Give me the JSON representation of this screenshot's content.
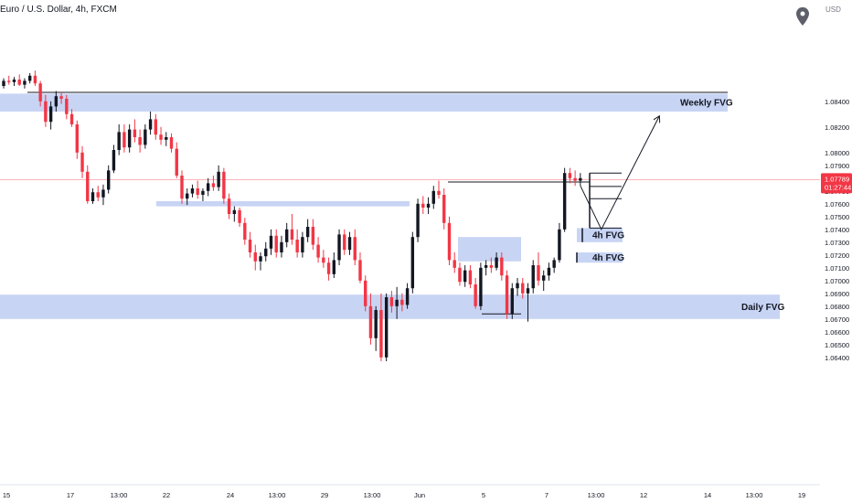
{
  "header": {
    "title": "Euro / U.S. Dollar, 4h, FXCM",
    "currency": "USD"
  },
  "chart_data": {
    "type": "candlestick",
    "price_axis": {
      "ticks": [
        1.084,
        1.082,
        1.08,
        1.079,
        1.077,
        1.076,
        1.075,
        1.074,
        1.073,
        1.072,
        1.071,
        1.07,
        1.069,
        1.068,
        1.067,
        1.066,
        1.065,
        1.064
      ],
      "labels": [
        "1.08400",
        "1.08200",
        "1.08000",
        "1.07900",
        "1.07700",
        "1.07600",
        "1.07500",
        "1.07400",
        "1.07300",
        "1.07200",
        "1.07100",
        "1.07000",
        "1.06900",
        "1.06800",
        "1.06700",
        "1.06600",
        "1.06500",
        "1.06400"
      ]
    },
    "time_axis": {
      "labels": [
        "15",
        "17",
        "13:00",
        "22",
        "24",
        "13:00",
        "29",
        "13:00",
        "Jun",
        "5",
        "7",
        "13:00",
        "12",
        "14",
        "13:00",
        "19"
      ]
    },
    "current_price": {
      "value": "1.07789",
      "countdown": "01:27:44",
      "color": "#f23645"
    },
    "zones": [
      {
        "label": "Weekly FVG",
        "from": 1.0832,
        "to": 1.0846
      },
      {
        "label": "",
        "from": 1.0758,
        "to": 1.0762
      },
      {
        "label": "",
        "from": 1.0715,
        "to": 1.0734
      },
      {
        "label": "4h FVG",
        "from": 1.073,
        "to": 1.0741
      },
      {
        "label": "4h FVG",
        "from": 1.0714,
        "to": 1.0722
      },
      {
        "label": "Daily FVG",
        "from": 1.067,
        "to": 1.0689
      }
    ],
    "levels": [
      1.0847,
      1.0777,
      1.0674
    ],
    "colors": {
      "up": "#131722",
      "down": "#f23645",
      "zone": "#c5d2f3"
    },
    "candles": [
      [
        1.0852,
        1.0858,
        1.085,
        1.0856
      ],
      [
        1.0856,
        1.086,
        1.0853,
        1.0855
      ],
      [
        1.0855,
        1.0859,
        1.0852,
        1.0857
      ],
      [
        1.0857,
        1.0861,
        1.0852,
        1.0853
      ],
      [
        1.0853,
        1.0858,
        1.085,
        1.0856
      ],
      [
        1.0856,
        1.0862,
        1.0854,
        1.086
      ],
      [
        1.086,
        1.0864,
        1.0852,
        1.0854
      ],
      [
        1.0854,
        1.0856,
        1.0836,
        1.084
      ],
      [
        1.084,
        1.0845,
        1.082,
        1.0824
      ],
      [
        1.0824,
        1.084,
        1.0818,
        1.0836
      ],
      [
        1.0836,
        1.0848,
        1.0832,
        1.0844
      ],
      [
        1.0844,
        1.0847,
        1.0838,
        1.0842
      ],
      [
        1.0842,
        1.0845,
        1.0826,
        1.083
      ],
      [
        1.083,
        1.0834,
        1.082,
        1.0822
      ],
      [
        1.0822,
        1.0825,
        1.0795,
        1.08
      ],
      [
        1.08,
        1.0805,
        1.078,
        1.0785
      ],
      [
        1.0785,
        1.079,
        1.076,
        1.0762
      ],
      [
        1.0762,
        1.0772,
        1.076,
        1.0769
      ],
      [
        1.0769,
        1.0774,
        1.0762,
        1.0765
      ],
      [
        1.0765,
        1.0775,
        1.0759,
        1.0771
      ],
      [
        1.0771,
        1.079,
        1.0768,
        1.0786
      ],
      [
        1.0786,
        1.0806,
        1.0784,
        1.0802
      ],
      [
        1.0802,
        1.0822,
        1.0798,
        1.0816
      ],
      [
        1.0816,
        1.0822,
        1.08,
        1.0804
      ],
      [
        1.0804,
        1.0822,
        1.08,
        1.0818
      ],
      [
        1.0818,
        1.0826,
        1.0808,
        1.0812
      ],
      [
        1.0812,
        1.0818,
        1.08,
        1.0806
      ],
      [
        1.0806,
        1.0822,
        1.0803,
        1.0818
      ],
      [
        1.0818,
        1.0832,
        1.0814,
        1.0826
      ],
      [
        1.0826,
        1.083,
        1.081,
        1.0814
      ],
      [
        1.0814,
        1.082,
        1.0806,
        1.081
      ],
      [
        1.081,
        1.0816,
        1.0805,
        1.0812
      ],
      [
        1.0812,
        1.0815,
        1.08,
        1.0803
      ],
      [
        1.0803,
        1.0808,
        1.078,
        1.0782
      ],
      [
        1.0782,
        1.0786,
        1.076,
        1.0764
      ],
      [
        1.0764,
        1.0772,
        1.0759,
        1.0768
      ],
      [
        1.0768,
        1.0775,
        1.0765,
        1.0772
      ],
      [
        1.0772,
        1.0778,
        1.0764,
        1.0767
      ],
      [
        1.0767,
        1.0772,
        1.0762,
        1.077
      ],
      [
        1.077,
        1.078,
        1.0766,
        1.0776
      ],
      [
        1.0776,
        1.0782,
        1.077,
        1.0773
      ],
      [
        1.0773,
        1.079,
        1.077,
        1.0785
      ],
      [
        1.0785,
        1.0788,
        1.076,
        1.0764
      ],
      [
        1.0764,
        1.0768,
        1.0748,
        1.0752
      ],
      [
        1.0752,
        1.0758,
        1.0746,
        1.0755
      ],
      [
        1.0755,
        1.0757,
        1.0742,
        1.0745
      ],
      [
        1.0745,
        1.0749,
        1.0728,
        1.0732
      ],
      [
        1.0732,
        1.0738,
        1.0718,
        1.0722
      ],
      [
        1.0722,
        1.0728,
        1.0708,
        1.0715
      ],
      [
        1.0715,
        1.0722,
        1.0708,
        1.0719
      ],
      [
        1.0719,
        1.073,
        1.0715,
        1.0725
      ],
      [
        1.0725,
        1.074,
        1.072,
        1.0735
      ],
      [
        1.0735,
        1.074,
        1.0718,
        1.0722
      ],
      [
        1.0722,
        1.0735,
        1.0718,
        1.073
      ],
      [
        1.073,
        1.0745,
        1.0726,
        1.074
      ],
      [
        1.074,
        1.0752,
        1.0728,
        1.0732
      ],
      [
        1.0732,
        1.074,
        1.0718,
        1.0722
      ],
      [
        1.0722,
        1.0738,
        1.0718,
        1.0734
      ],
      [
        1.0734,
        1.0748,
        1.073,
        1.0742
      ],
      [
        1.0742,
        1.0748,
        1.0724,
        1.0728
      ],
      [
        1.0728,
        1.0734,
        1.0714,
        1.0718
      ],
      [
        1.0718,
        1.0724,
        1.071,
        1.0714
      ],
      [
        1.0714,
        1.0718,
        1.07,
        1.0705
      ],
      [
        1.0705,
        1.0722,
        1.0702,
        1.0716
      ],
      [
        1.0716,
        1.074,
        1.0712,
        1.0736
      ],
      [
        1.0736,
        1.074,
        1.072,
        1.0724
      ],
      [
        1.0724,
        1.0738,
        1.072,
        1.0734
      ],
      [
        1.0734,
        1.074,
        1.0712,
        1.0716
      ],
      [
        1.0716,
        1.0722,
        1.0698,
        1.07
      ],
      [
        1.07,
        1.0704,
        1.0676,
        1.068
      ],
      [
        1.068,
        1.069,
        1.065,
        1.0655
      ],
      [
        1.0655,
        1.068,
        1.0645,
        1.0677
      ],
      [
        1.0677,
        1.069,
        1.0637,
        1.064
      ],
      [
        1.064,
        1.069,
        1.0637,
        1.0687
      ],
      [
        1.0687,
        1.0692,
        1.0675,
        1.068
      ],
      [
        1.068,
        1.0695,
        1.067,
        1.0685
      ],
      [
        1.0685,
        1.069,
        1.0676,
        1.0681
      ],
      [
        1.0681,
        1.0698,
        1.0678,
        1.0694
      ],
      [
        1.0694,
        1.0738,
        1.069,
        1.0734
      ],
      [
        1.0734,
        1.0764,
        1.073,
        1.076
      ],
      [
        1.076,
        1.0766,
        1.0752,
        1.0757
      ],
      [
        1.0757,
        1.0765,
        1.0752,
        1.076
      ],
      [
        1.076,
        1.0774,
        1.0756,
        1.077
      ],
      [
        1.077,
        1.0778,
        1.0764,
        1.0767
      ],
      [
        1.0767,
        1.0772,
        1.074,
        1.0745
      ],
      [
        1.0745,
        1.075,
        1.0712,
        1.0716
      ],
      [
        1.0716,
        1.0722,
        1.0706,
        1.071
      ],
      [
        1.071,
        1.0714,
        1.0696,
        1.0699
      ],
      [
        1.0699,
        1.0712,
        1.0695,
        1.0708
      ],
      [
        1.0708,
        1.0712,
        1.0694,
        1.0697
      ],
      [
        1.0697,
        1.0702,
        1.0678,
        1.068
      ],
      [
        1.068,
        1.0714,
        1.0677,
        1.071
      ],
      [
        1.071,
        1.0716,
        1.0704,
        1.0712
      ],
      [
        1.0712,
        1.0718,
        1.0706,
        1.071
      ],
      [
        1.071,
        1.0722,
        1.0708,
        1.0718
      ],
      [
        1.0718,
        1.0722,
        1.07,
        1.0704
      ],
      [
        1.0704,
        1.0708,
        1.067,
        1.0674
      ],
      [
        1.0674,
        1.0698,
        1.067,
        1.0694
      ],
      [
        1.0694,
        1.0702,
        1.0688,
        1.0698
      ],
      [
        1.0698,
        1.0702,
        1.0686,
        1.069
      ],
      [
        1.069,
        1.0698,
        1.0668,
        1.0694
      ],
      [
        1.0694,
        1.0716,
        1.069,
        1.0712
      ],
      [
        1.0712,
        1.0722,
        1.0696,
        1.07
      ],
      [
        1.07,
        1.0708,
        1.0692,
        1.0704
      ],
      [
        1.0704,
        1.0714,
        1.07,
        1.071
      ],
      [
        1.071,
        1.0718,
        1.0706,
        1.0716
      ],
      [
        1.0716,
        1.0745,
        1.0714,
        1.074
      ],
      [
        1.074,
        1.0788,
        1.0738,
        1.0784
      ],
      [
        1.0784,
        1.0788,
        1.0776,
        1.078
      ],
      [
        1.078,
        1.0786,
        1.0774,
        1.0778
      ],
      [
        1.0778,
        1.0784,
        1.0774,
        1.078
      ]
    ],
    "projection": [
      {
        "time_index": 110,
        "price": 1.0774
      },
      {
        "time_index": 114,
        "price": 1.074
      },
      {
        "time_index": 125,
        "price": 1.0828
      }
    ]
  }
}
